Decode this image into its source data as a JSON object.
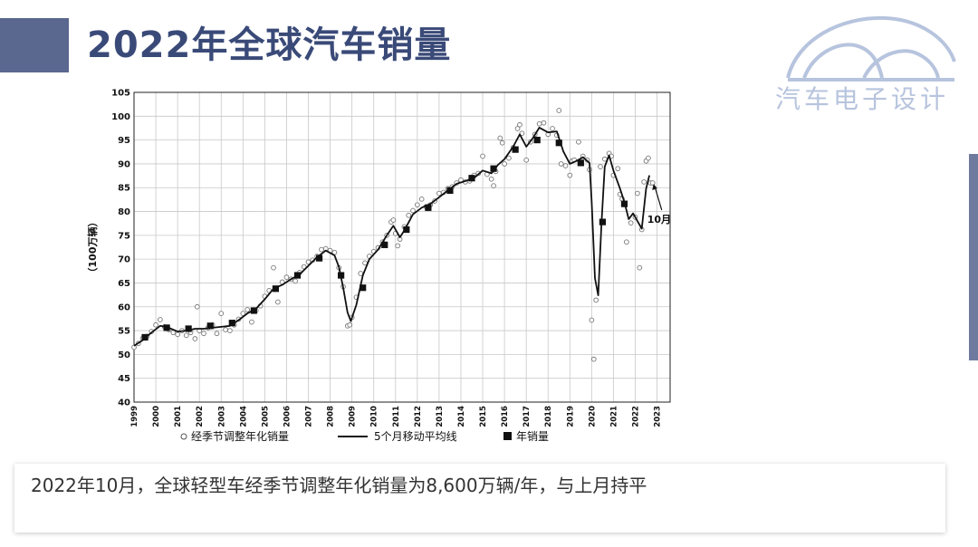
{
  "page": {
    "title": "2022年全球汽车销量",
    "logo_text": "汽车电子设计",
    "caption": "2022年10月，全球轻型车经季节调整年化销量为8,600万辆/年，与上月持平",
    "colors": {
      "title": "#3a4a78",
      "accent_bar": "#5a678f",
      "right_tab": "#6e7b9f",
      "logo": "#b7c4de"
    }
  },
  "chart_data": {
    "type": "line",
    "ylabel": "（100万辆）",
    "ylim": [
      40,
      105
    ],
    "xlim": [
      1999,
      2023.6
    ],
    "y_ticks": [
      40,
      45,
      50,
      55,
      60,
      65,
      70,
      75,
      80,
      85,
      90,
      95,
      100,
      105
    ],
    "x_ticks": [
      "1999",
      "2000",
      "2001",
      "2002",
      "2003",
      "2004",
      "2005",
      "2006",
      "2007",
      "2008",
      "2009",
      "2010",
      "2011",
      "2012",
      "2013",
      "2014",
      "2015",
      "2016",
      "2017",
      "2018",
      "2019",
      "2020",
      "2021",
      "2022",
      "2023"
    ],
    "grid": true,
    "legend_position": "bottom",
    "annotation": {
      "text": "10月",
      "x": 2022.8,
      "y": 86
    },
    "series": [
      {
        "name": "经季节调整年化销量",
        "marker": "open-circle",
        "points": [
          [
            1999.0,
            51.5
          ],
          [
            1999.2,
            52.3
          ],
          [
            1999.4,
            53.4
          ],
          [
            1999.6,
            53.8
          ],
          [
            1999.8,
            54.8
          ],
          [
            2000.0,
            56.2
          ],
          [
            2000.2,
            57.3
          ],
          [
            2000.4,
            55.8
          ],
          [
            2000.6,
            55.2
          ],
          [
            2000.8,
            54.6
          ],
          [
            2001.0,
            54.2
          ],
          [
            2001.2,
            55.0
          ],
          [
            2001.4,
            54.0
          ],
          [
            2001.6,
            54.6
          ],
          [
            2001.8,
            53.3
          ],
          [
            2001.9,
            60.0
          ],
          [
            2002.0,
            55.0
          ],
          [
            2002.2,
            54.4
          ],
          [
            2002.4,
            55.6
          ],
          [
            2002.6,
            56.2
          ],
          [
            2002.8,
            54.4
          ],
          [
            2003.0,
            58.6
          ],
          [
            2003.2,
            55.2
          ],
          [
            2003.4,
            55.0
          ],
          [
            2003.6,
            56.2
          ],
          [
            2003.8,
            57.4
          ],
          [
            2004.0,
            58.6
          ],
          [
            2004.2,
            59.4
          ],
          [
            2004.4,
            56.8
          ],
          [
            2004.6,
            59.2
          ],
          [
            2004.8,
            60.2
          ],
          [
            2005.0,
            62.2
          ],
          [
            2005.2,
            63.4
          ],
          [
            2005.4,
            68.2
          ],
          [
            2005.6,
            61.0
          ],
          [
            2005.8,
            65.2
          ],
          [
            2006.0,
            66.2
          ],
          [
            2006.2,
            65.8
          ],
          [
            2006.4,
            65.4
          ],
          [
            2006.6,
            67.2
          ],
          [
            2006.8,
            68.4
          ],
          [
            2007.0,
            69.4
          ],
          [
            2007.2,
            69.8
          ],
          [
            2007.4,
            70.6
          ],
          [
            2007.6,
            72.0
          ],
          [
            2007.8,
            72.2
          ],
          [
            2008.0,
            71.8
          ],
          [
            2008.2,
            71.4
          ],
          [
            2008.4,
            68.2
          ],
          [
            2008.6,
            64.2
          ],
          [
            2008.8,
            56.0
          ],
          [
            2008.9,
            56.2
          ],
          [
            2009.0,
            57.8
          ],
          [
            2009.2,
            62.0
          ],
          [
            2009.4,
            67.0
          ],
          [
            2009.6,
            69.2
          ],
          [
            2009.8,
            70.6
          ],
          [
            2010.0,
            71.6
          ],
          [
            2010.2,
            72.4
          ],
          [
            2010.4,
            73.6
          ],
          [
            2010.6,
            75.0
          ],
          [
            2010.8,
            77.8
          ],
          [
            2010.9,
            78.2
          ],
          [
            2011.0,
            75.4
          ],
          [
            2011.1,
            72.8
          ],
          [
            2011.2,
            74.2
          ],
          [
            2011.4,
            76.8
          ],
          [
            2011.6,
            79.2
          ],
          [
            2011.8,
            80.2
          ],
          [
            2012.0,
            81.4
          ],
          [
            2012.2,
            82.6
          ],
          [
            2012.4,
            81.0
          ],
          [
            2012.6,
            81.4
          ],
          [
            2012.8,
            82.2
          ],
          [
            2013.0,
            83.8
          ],
          [
            2013.2,
            84.0
          ],
          [
            2013.4,
            84.8
          ],
          [
            2013.6,
            85.2
          ],
          [
            2013.8,
            86.0
          ],
          [
            2014.0,
            86.6
          ],
          [
            2014.2,
            86.2
          ],
          [
            2014.4,
            86.4
          ],
          [
            2014.6,
            87.6
          ],
          [
            2014.8,
            88.0
          ],
          [
            2015.0,
            91.6
          ],
          [
            2015.2,
            87.8
          ],
          [
            2015.4,
            86.8
          ],
          [
            2015.5,
            85.4
          ],
          [
            2015.6,
            88.4
          ],
          [
            2015.8,
            95.4
          ],
          [
            2015.9,
            94.4
          ],
          [
            2016.0,
            90.0
          ],
          [
            2016.2,
            91.2
          ],
          [
            2016.4,
            93.4
          ],
          [
            2016.6,
            97.4
          ],
          [
            2016.7,
            98.2
          ],
          [
            2016.8,
            96.4
          ],
          [
            2017.0,
            90.8
          ],
          [
            2017.2,
            94.6
          ],
          [
            2017.4,
            96.2
          ],
          [
            2017.6,
            98.4
          ],
          [
            2017.8,
            98.6
          ],
          [
            2018.0,
            96.2
          ],
          [
            2018.2,
            97.4
          ],
          [
            2018.4,
            96.0
          ],
          [
            2018.5,
            101.2
          ],
          [
            2018.6,
            90.0
          ],
          [
            2018.8,
            89.6
          ],
          [
            2019.0,
            87.6
          ],
          [
            2019.1,
            90.6
          ],
          [
            2019.2,
            90.8
          ],
          [
            2019.4,
            94.6
          ],
          [
            2019.6,
            91.6
          ],
          [
            2019.8,
            90.8
          ],
          [
            2019.9,
            88.8
          ],
          [
            2020.0,
            57.2
          ],
          [
            2020.1,
            49.0
          ],
          [
            2020.2,
            61.4
          ],
          [
            2020.4,
            89.4
          ],
          [
            2020.6,
            91.0
          ],
          [
            2020.8,
            92.2
          ],
          [
            2020.9,
            91.6
          ],
          [
            2021.0,
            87.6
          ],
          [
            2021.2,
            89.0
          ],
          [
            2021.3,
            83.6
          ],
          [
            2021.4,
            82.6
          ],
          [
            2021.6,
            73.6
          ],
          [
            2021.8,
            77.6
          ],
          [
            2022.0,
            78.8
          ],
          [
            2022.1,
            83.8
          ],
          [
            2022.2,
            68.2
          ],
          [
            2022.3,
            76.2
          ],
          [
            2022.4,
            86.2
          ],
          [
            2022.5,
            90.6
          ],
          [
            2022.6,
            91.2
          ],
          [
            2022.7,
            86.0
          ],
          [
            2022.8,
            86.0
          ]
        ]
      },
      {
        "name": "5个月移动平均线",
        "style": "solid-line",
        "points": [
          [
            1999.0,
            51.8
          ],
          [
            1999.4,
            53.0
          ],
          [
            1999.8,
            54.6
          ],
          [
            2000.2,
            56.0
          ],
          [
            2000.6,
            55.6
          ],
          [
            2001.0,
            54.8
          ],
          [
            2001.4,
            55.0
          ],
          [
            2001.8,
            55.4
          ],
          [
            2002.2,
            55.4
          ],
          [
            2002.6,
            55.6
          ],
          [
            2003.0,
            55.8
          ],
          [
            2003.4,
            56.0
          ],
          [
            2003.8,
            57.2
          ],
          [
            2004.2,
            58.6
          ],
          [
            2004.6,
            59.6
          ],
          [
            2005.0,
            61.6
          ],
          [
            2005.4,
            63.8
          ],
          [
            2005.8,
            64.6
          ],
          [
            2006.2,
            65.8
          ],
          [
            2006.6,
            66.8
          ],
          [
            2007.0,
            68.6
          ],
          [
            2007.4,
            70.4
          ],
          [
            2007.8,
            71.8
          ],
          [
            2008.2,
            70.8
          ],
          [
            2008.4,
            68.4
          ],
          [
            2008.6,
            64.0
          ],
          [
            2008.8,
            58.8
          ],
          [
            2008.95,
            57.0
          ],
          [
            2009.2,
            60.4
          ],
          [
            2009.5,
            66.6
          ],
          [
            2009.8,
            70.0
          ],
          [
            2010.2,
            72.0
          ],
          [
            2010.6,
            75.0
          ],
          [
            2010.9,
            77.0
          ],
          [
            2011.2,
            74.6
          ],
          [
            2011.4,
            76.0
          ],
          [
            2011.8,
            79.4
          ],
          [
            2012.2,
            80.8
          ],
          [
            2012.6,
            81.6
          ],
          [
            2013.0,
            83.0
          ],
          [
            2013.4,
            84.4
          ],
          [
            2013.8,
            85.8
          ],
          [
            2014.2,
            86.4
          ],
          [
            2014.6,
            87.0
          ],
          [
            2015.0,
            88.6
          ],
          [
            2015.4,
            88.0
          ],
          [
            2015.7,
            89.8
          ],
          [
            2016.0,
            91.0
          ],
          [
            2016.4,
            93.6
          ],
          [
            2016.7,
            96.2
          ],
          [
            2017.0,
            93.6
          ],
          [
            2017.3,
            95.4
          ],
          [
            2017.6,
            97.6
          ],
          [
            2018.0,
            96.6
          ],
          [
            2018.4,
            96.8
          ],
          [
            2018.7,
            92.6
          ],
          [
            2019.0,
            90.0
          ],
          [
            2019.3,
            90.6
          ],
          [
            2019.6,
            91.4
          ],
          [
            2019.9,
            90.2
          ],
          [
            2020.0,
            82.0
          ],
          [
            2020.15,
            66.0
          ],
          [
            2020.3,
            62.4
          ],
          [
            2020.45,
            77.4
          ],
          [
            2020.6,
            89.4
          ],
          [
            2020.8,
            91.8
          ],
          [
            2021.0,
            88.6
          ],
          [
            2021.3,
            84.8
          ],
          [
            2021.5,
            82.0
          ],
          [
            2021.7,
            78.4
          ],
          [
            2021.9,
            79.6
          ],
          [
            2022.1,
            78.0
          ],
          [
            2022.3,
            76.4
          ],
          [
            2022.5,
            84.8
          ],
          [
            2022.65,
            87.6
          ]
        ]
      },
      {
        "name": "年销量",
        "marker": "filled-square",
        "points": [
          [
            1999.5,
            53.6
          ],
          [
            2000.5,
            55.6
          ],
          [
            2001.5,
            55.4
          ],
          [
            2002.5,
            56.0
          ],
          [
            2003.5,
            56.6
          ],
          [
            2004.5,
            59.2
          ],
          [
            2005.5,
            63.8
          ],
          [
            2006.5,
            66.6
          ],
          [
            2007.5,
            70.2
          ],
          [
            2008.5,
            66.6
          ],
          [
            2009.5,
            64.0
          ],
          [
            2010.5,
            73.0
          ],
          [
            2011.5,
            76.2
          ],
          [
            2012.5,
            80.8
          ],
          [
            2013.5,
            84.4
          ],
          [
            2014.5,
            87.0
          ],
          [
            2015.5,
            89.0
          ],
          [
            2016.5,
            93.0
          ],
          [
            2017.5,
            95.0
          ],
          [
            2018.5,
            94.4
          ],
          [
            2019.5,
            90.2
          ],
          [
            2020.5,
            77.8
          ],
          [
            2021.5,
            81.6
          ]
        ]
      }
    ]
  }
}
